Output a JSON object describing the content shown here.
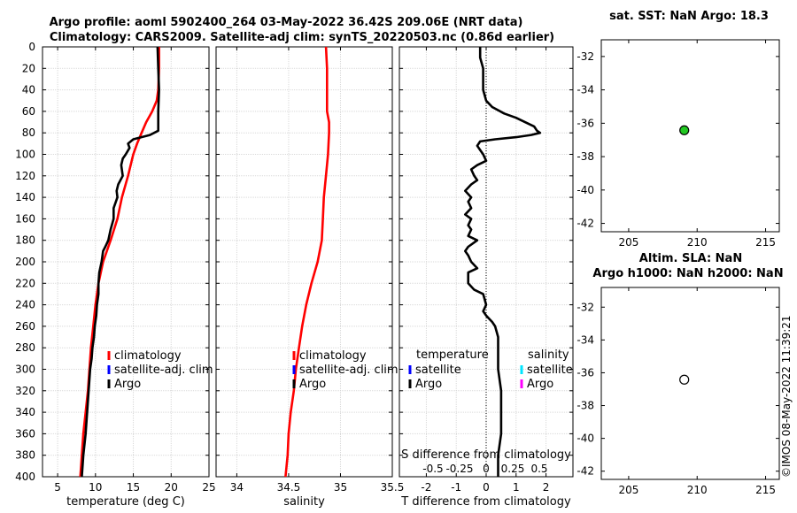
{
  "title": {
    "line1": "Argo profile: aoml 5902400_264 03-May-2022 36.42S 209.06E (NRT data)",
    "line2": "Climatology: CARS2009. Satellite-adj clim: synTS_20220503.nc (0.86d earlier)"
  },
  "timestamp": "©IMOS 08-May-2022 11:39:21",
  "depth_ticks": [
    "0",
    "20",
    "40",
    "60",
    "80",
    "100",
    "120",
    "140",
    "160",
    "180",
    "200",
    "220",
    "240",
    "260",
    "280",
    "300",
    "320",
    "340",
    "360",
    "380",
    "400"
  ],
  "chart_data": [
    {
      "id": "temperature",
      "type": "line",
      "xlabel": "temperature (deg C)",
      "ylabel": "",
      "xlim": [
        3,
        25
      ],
      "ylim": [
        400,
        0
      ],
      "xticks": [
        5,
        10,
        15,
        20,
        25
      ],
      "xtick_labels": [
        "5",
        "10",
        "15",
        "20",
        "25"
      ],
      "legend": [
        "climatology",
        "satellite-adj. clim",
        "Argo"
      ],
      "legend_colors": [
        "#ff0000",
        "#0000ff",
        "#000000"
      ],
      "series": [
        {
          "name": "climatology",
          "color": "#ff0000",
          "depth": [
            0,
            20,
            40,
            50,
            60,
            70,
            80,
            90,
            100,
            120,
            140,
            160,
            180,
            200,
            220,
            240,
            260,
            280,
            300,
            320,
            340,
            360,
            380,
            400
          ],
          "values": [
            18.4,
            18.4,
            18.3,
            18.1,
            17.5,
            16.7,
            16.1,
            15.5,
            15.0,
            14.3,
            13.5,
            12.9,
            12.0,
            11.0,
            10.4,
            10.0,
            9.7,
            9.4,
            9.2,
            9.0,
            8.7,
            8.4,
            8.2,
            8.0
          ]
        },
        {
          "name": "Argo",
          "color": "#000000",
          "depth": [
            0,
            20,
            40,
            60,
            70,
            78,
            82,
            86,
            90,
            94,
            100,
            104,
            110,
            120,
            128,
            134,
            140,
            150,
            160,
            170,
            180,
            186,
            190,
            200,
            210,
            220,
            230,
            240,
            250,
            260,
            270,
            280,
            290,
            300,
            320,
            340,
            360,
            380,
            400
          ],
          "values": [
            18.2,
            18.3,
            18.4,
            18.3,
            18.3,
            18.3,
            17.2,
            15.0,
            14.3,
            14.5,
            14.0,
            13.6,
            13.4,
            13.6,
            13.0,
            12.8,
            12.9,
            12.4,
            12.4,
            12.0,
            11.7,
            11.3,
            11.0,
            10.8,
            10.5,
            10.4,
            10.4,
            10.2,
            10.1,
            9.9,
            9.8,
            9.6,
            9.5,
            9.3,
            9.1,
            8.9,
            8.7,
            8.4,
            8.2
          ]
        }
      ]
    },
    {
      "id": "salinity",
      "type": "line",
      "xlabel": "salinity",
      "ylabel": "",
      "xlim": [
        33.8,
        35.5
      ],
      "ylim": [
        400,
        0
      ],
      "xticks": [
        34,
        34.5,
        35,
        35.5
      ],
      "xtick_labels": [
        "34",
        "34.5",
        "35",
        "35.5"
      ],
      "legend": [
        "climatology",
        "satellite-adj. clim",
        "Argo"
      ],
      "legend_colors": [
        "#ff0000",
        "#0000ff",
        "#000000"
      ],
      "series": [
        {
          "name": "climatology",
          "color": "#ff0000",
          "depth": [
            0,
            20,
            40,
            60,
            70,
            80,
            100,
            120,
            140,
            160,
            180,
            200,
            220,
            240,
            260,
            280,
            300,
            320,
            340,
            360,
            380,
            400
          ],
          "values": [
            34.86,
            34.87,
            34.87,
            34.87,
            34.89,
            34.89,
            34.88,
            34.86,
            34.84,
            34.83,
            34.82,
            34.78,
            34.72,
            34.67,
            34.63,
            34.6,
            34.57,
            34.55,
            34.52,
            34.5,
            34.49,
            34.47
          ]
        }
      ]
    },
    {
      "id": "tdiff",
      "type": "line",
      "xlabel": "T difference from climatology",
      "ylabel": "",
      "xlim": [
        -2.9,
        2.9
      ],
      "ylim": [
        400,
        0
      ],
      "xticks": [
        -2,
        -1,
        0,
        1,
        2
      ],
      "xtick_labels": [
        "-2",
        "-1",
        "0",
        "1",
        "2"
      ],
      "top_axis_label": "S difference from climatology",
      "top_xticks": [
        -0.5,
        -0.25,
        0,
        0.25,
        0.5
      ],
      "top_xtick_labels": [
        "-0.5",
        "-0.25",
        "0",
        "0.25",
        "0.5"
      ],
      "legend_temperature_header": "temperature",
      "legend_salinity_header": "salinity",
      "legend_temperature": [
        "satellite",
        "Argo"
      ],
      "legend_temperature_colors": [
        "#0000ff",
        "#000000"
      ],
      "legend_salinity": [
        "satellite",
        "Argo"
      ],
      "legend_salinity_colors": [
        "#00e5ff",
        "#ff00ff"
      ],
      "series": [
        {
          "name": "Argo T diff",
          "color": "#000000",
          "depth": [
            0,
            10,
            20,
            30,
            40,
            50,
            56,
            62,
            66,
            70,
            74,
            78,
            80,
            82,
            84,
            86,
            88,
            92,
            96,
            100,
            106,
            110,
            114,
            120,
            124,
            128,
            134,
            140,
            144,
            150,
            156,
            160,
            166,
            170,
            176,
            180,
            186,
            190,
            194,
            200,
            206,
            210,
            220,
            226,
            230,
            240,
            246,
            250,
            256,
            260,
            270,
            280,
            290,
            300,
            320,
            340,
            360,
            380,
            400
          ],
          "values": [
            -0.2,
            -0.2,
            -0.1,
            -0.1,
            -0.1,
            0.0,
            0.2,
            0.6,
            1.0,
            1.3,
            1.6,
            1.7,
            1.8,
            1.5,
            1.0,
            0.3,
            -0.2,
            -0.3,
            -0.2,
            -0.1,
            0.0,
            -0.3,
            -0.5,
            -0.4,
            -0.3,
            -0.5,
            -0.7,
            -0.5,
            -0.6,
            -0.5,
            -0.7,
            -0.5,
            -0.6,
            -0.5,
            -0.6,
            -0.3,
            -0.6,
            -0.7,
            -0.6,
            -0.5,
            -0.3,
            -0.6,
            -0.6,
            -0.4,
            -0.1,
            0.0,
            -0.1,
            0.0,
            0.2,
            0.3,
            0.4,
            0.4,
            0.4,
            0.4,
            0.5,
            0.5,
            0.5,
            0.4,
            0.4
          ]
        }
      ]
    },
    {
      "id": "sst",
      "type": "scatter",
      "title": "sat. SST: NaN Argo: 18.3",
      "xlim": [
        203,
        216
      ],
      "ylim": [
        -42.5,
        -31
      ],
      "xticks": [
        205,
        210,
        215
      ],
      "xtick_labels": [
        "205",
        "210",
        "215"
      ],
      "yticks": [
        -32,
        -34,
        -36,
        -38,
        -40,
        -42
      ],
      "ytick_labels": [
        "-32",
        "-34",
        "-36",
        "-38",
        "-40",
        "-42"
      ],
      "points": [
        {
          "x": 209.06,
          "y": -36.42,
          "color": "#22c822"
        }
      ]
    },
    {
      "id": "sla",
      "type": "scatter",
      "title": "Altim. SLA: NaN",
      "subtitle": "Argo h1000: NaN h2000: NaN",
      "xlim": [
        203,
        216
      ],
      "ylim": [
        -42.5,
        -30.8
      ],
      "xticks": [
        205,
        210,
        215
      ],
      "xtick_labels": [
        "205",
        "210",
        "215"
      ],
      "yticks": [
        -32,
        -34,
        -36,
        -38,
        -40,
        -42
      ],
      "ytick_labels": [
        "-32",
        "-34",
        "-36",
        "-38",
        "-40",
        "-42"
      ],
      "points": [
        {
          "x": 209.06,
          "y": -36.42,
          "color": "#ffffff"
        }
      ]
    }
  ]
}
